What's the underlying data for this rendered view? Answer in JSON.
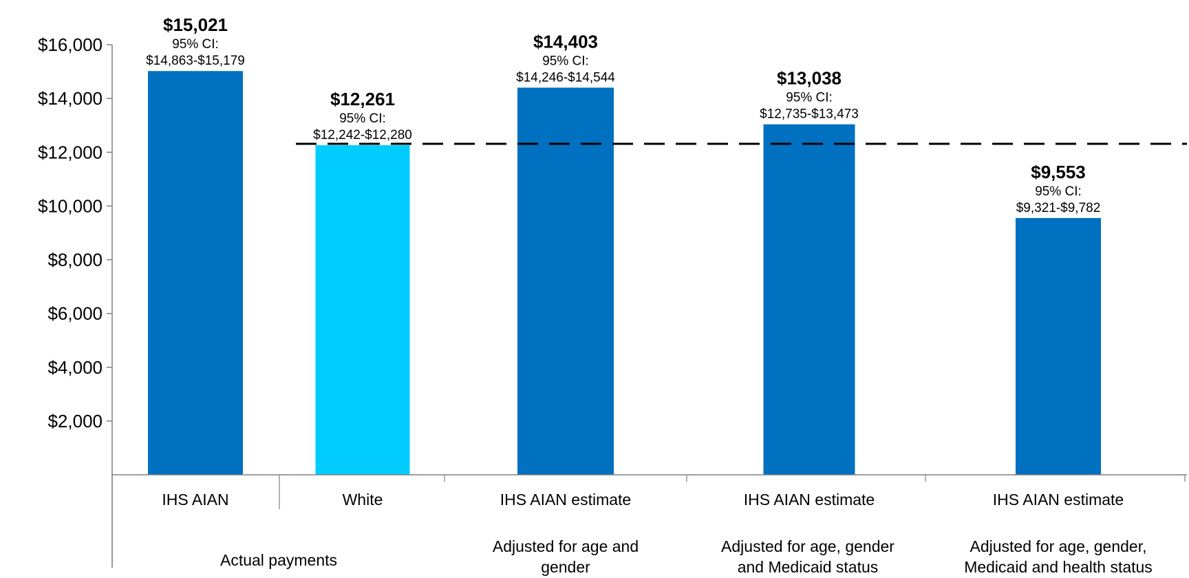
{
  "chart_data": {
    "type": "bar",
    "categories": [
      "IHS AIAN",
      "White",
      "IHS AIAN estimate",
      "IHS AIAN estimate",
      "IHS AIAN estimate"
    ],
    "groups": [
      {
        "label": "Actual payments",
        "span": [
          0,
          1
        ]
      },
      {
        "label_lines": [
          "Adjusted for age and",
          "gender"
        ],
        "span": [
          2,
          2
        ]
      },
      {
        "label_lines": [
          "Adjusted for age, gender",
          "and Medicaid status"
        ],
        "span": [
          3,
          3
        ]
      },
      {
        "label_lines": [
          "Adjusted for age, gender,",
          "Medicaid and health status"
        ],
        "span": [
          4,
          4
        ]
      }
    ],
    "values": [
      15021,
      12261,
      14403,
      13038,
      9553
    ],
    "value_labels": [
      "$15,021",
      "$12,261",
      "$14,403",
      "$13,038",
      "$9,553"
    ],
    "ci_title": "95% CI:",
    "ci_labels": [
      "$14,863-$15,179",
      "$12,242-$12,280",
      "$14,246-$14,544",
      "$12,735-$13,473",
      "$9,321-$9,782"
    ],
    "bar_colors": [
      "#0070C0",
      "#00CCFF",
      "#0070C0",
      "#0070C0",
      "#0070C0"
    ],
    "reference_line": {
      "value": 12261,
      "style": "dashed",
      "color": "#000000"
    },
    "ylim": [
      0,
      16000
    ],
    "yticks": [
      2000,
      4000,
      6000,
      8000,
      10000,
      12000,
      14000,
      16000
    ],
    "ytick_labels": [
      "$2,000",
      "$4,000",
      "$6,000",
      "$8,000",
      "$10,000",
      "$12,000",
      "$14,000",
      "$16,000"
    ],
    "title": "",
    "xlabel": "",
    "ylabel": "",
    "grid": false,
    "legend": "none"
  }
}
